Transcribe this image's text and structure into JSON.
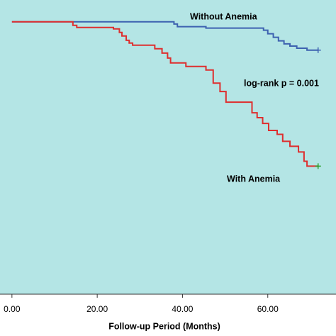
{
  "chart_data": {
    "type": "step",
    "xlabel": "Follow-up Period (Months)",
    "xlim": [
      -2.8,
      76
    ],
    "ylim": [
      0,
      1.08
    ],
    "xticks": [
      {
        "value": 0,
        "label": "0.00"
      },
      {
        "value": 20,
        "label": "20.00"
      },
      {
        "value": 40,
        "label": "40.00"
      },
      {
        "value": 60,
        "label": "60.00"
      }
    ],
    "background": "#b4e5e5",
    "annotations": [
      "Without Anemia",
      "log-rank p = 0.001",
      "With Anemia"
    ],
    "series": [
      {
        "color": "#3d62b0",
        "censor_color": "#3d62b0",
        "x": [
          0,
          38,
          38.8,
          45.5,
          59,
          60,
          61.3,
          62.5,
          63.8,
          65.2,
          66.8,
          69.2,
          71.8
        ],
        "values": [
          1.0,
          0.992,
          0.982,
          0.977,
          0.969,
          0.956,
          0.943,
          0.93,
          0.919,
          0.911,
          0.903,
          0.896,
          0.896
        ]
      },
      {
        "color": "#de2e2e",
        "censor_color": "#2ca02c",
        "x": [
          0,
          14.3,
          15.2,
          23.8,
          25.2,
          25.8,
          26.8,
          27.5,
          28.3,
          33.5,
          35.2,
          36.5,
          37.2,
          40.8,
          45.5,
          47.2,
          48.8,
          50.2,
          56.3,
          57.5,
          58.8,
          60.2,
          62.2,
          63.5,
          65.2,
          67.2,
          68.5,
          69.2,
          71.8
        ],
        "values": [
          1.0,
          0.987,
          0.979,
          0.974,
          0.961,
          0.948,
          0.932,
          0.922,
          0.914,
          0.901,
          0.885,
          0.867,
          0.849,
          0.836,
          0.823,
          0.775,
          0.744,
          0.705,
          0.666,
          0.648,
          0.627,
          0.601,
          0.587,
          0.561,
          0.543,
          0.522,
          0.488,
          0.47,
          0.47
        ]
      }
    ]
  }
}
